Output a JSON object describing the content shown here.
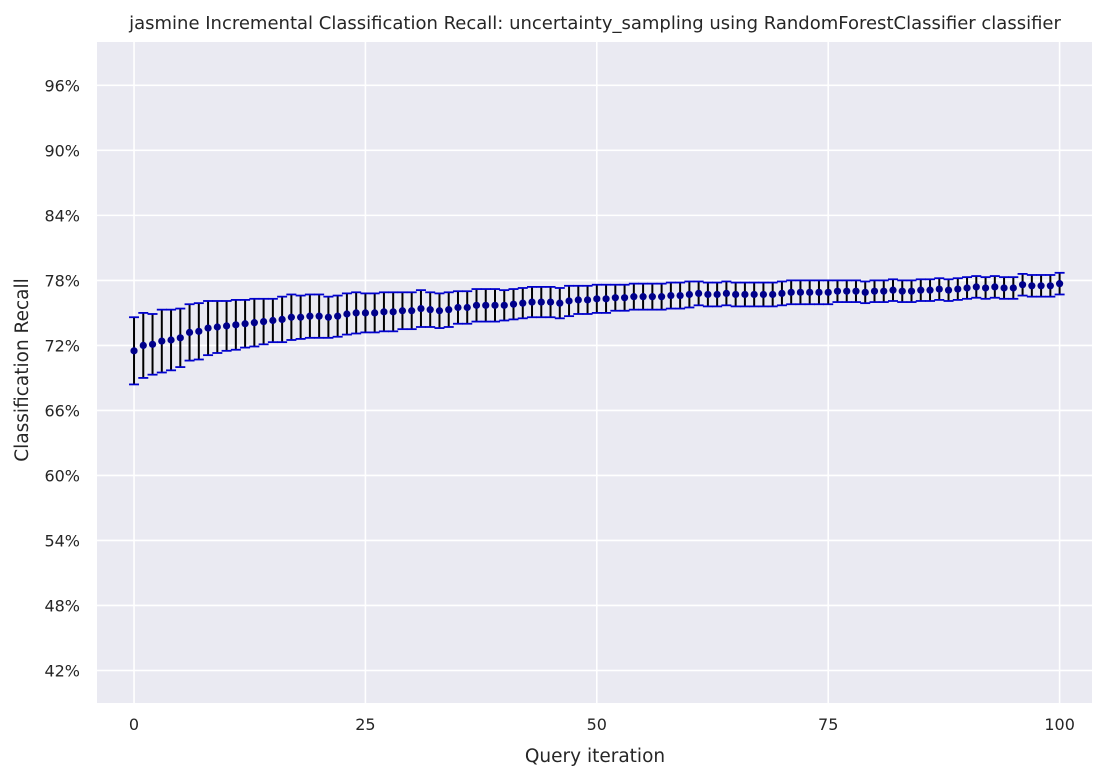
{
  "chart_data": {
    "type": "scatter",
    "title": "jasmine Incremental Classification Recall: uncertainty_sampling using RandomForestClassifier classifier",
    "xlabel": "Query iteration",
    "ylabel": "Classification Recall",
    "xlim": [
      -4,
      103.5
    ],
    "ylim": [
      0.39,
      1.0
    ],
    "x_ticks": [
      0,
      25,
      50,
      75,
      100
    ],
    "x_tick_labels": [
      "0",
      "25",
      "50",
      "75",
      "100"
    ],
    "y_ticks": [
      0.42,
      0.48,
      0.54,
      0.6,
      0.66,
      0.72,
      0.78,
      0.84,
      0.9,
      0.96
    ],
    "y_tick_labels": [
      "42%",
      "48%",
      "54%",
      "60%",
      "66%",
      "72%",
      "78%",
      "84%",
      "90%",
      "96%"
    ],
    "grid": true,
    "colors": {
      "background": "#eaeaf2",
      "grid": "#ffffff",
      "marker": "#00008b",
      "error_line": "#000000",
      "error_cap": "#0000cd"
    },
    "series": [
      {
        "x": [
          0,
          1,
          2,
          3,
          4,
          5,
          6,
          7,
          8,
          9,
          10,
          11,
          12,
          13,
          14,
          15,
          16,
          17,
          18,
          19,
          20,
          21,
          22,
          23,
          24,
          25,
          26,
          27,
          28,
          29,
          30,
          31,
          32,
          33,
          34,
          35,
          36,
          37,
          38,
          39,
          40,
          41,
          42,
          43,
          44,
          45,
          46,
          47,
          48,
          49,
          50,
          51,
          52,
          53,
          54,
          55,
          56,
          57,
          58,
          59,
          60,
          61,
          62,
          63,
          64,
          65,
          66,
          67,
          68,
          69,
          70,
          71,
          72,
          73,
          74,
          75,
          76,
          77,
          78,
          79,
          80,
          81,
          82,
          83,
          84,
          85,
          86,
          87,
          88,
          89,
          90,
          91,
          92,
          93,
          94,
          95,
          96,
          97,
          98,
          99,
          100
        ],
        "y": [
          0.715,
          0.72,
          0.721,
          0.724,
          0.725,
          0.727,
          0.732,
          0.733,
          0.736,
          0.737,
          0.738,
          0.739,
          0.74,
          0.741,
          0.742,
          0.743,
          0.744,
          0.746,
          0.746,
          0.747,
          0.747,
          0.746,
          0.747,
          0.749,
          0.75,
          0.75,
          0.75,
          0.751,
          0.751,
          0.752,
          0.752,
          0.754,
          0.753,
          0.752,
          0.753,
          0.755,
          0.755,
          0.757,
          0.757,
          0.757,
          0.757,
          0.758,
          0.759,
          0.76,
          0.76,
          0.76,
          0.759,
          0.761,
          0.762,
          0.762,
          0.763,
          0.763,
          0.764,
          0.764,
          0.765,
          0.765,
          0.765,
          0.765,
          0.766,
          0.766,
          0.767,
          0.768,
          0.767,
          0.767,
          0.768,
          0.767,
          0.767,
          0.767,
          0.767,
          0.767,
          0.768,
          0.769,
          0.769,
          0.769,
          0.769,
          0.769,
          0.77,
          0.77,
          0.77,
          0.769,
          0.77,
          0.77,
          0.771,
          0.77,
          0.77,
          0.771,
          0.771,
          0.772,
          0.771,
          0.772,
          0.773,
          0.774,
          0.773,
          0.774,
          0.773,
          0.773,
          0.776,
          0.775,
          0.775,
          0.775,
          0.777
        ],
        "error": [
          0.031,
          0.03,
          0.028,
          0.029,
          0.028,
          0.027,
          0.026,
          0.026,
          0.025,
          0.024,
          0.023,
          0.023,
          0.022,
          0.022,
          0.021,
          0.02,
          0.021,
          0.021,
          0.02,
          0.02,
          0.02,
          0.019,
          0.019,
          0.019,
          0.019,
          0.018,
          0.018,
          0.018,
          0.018,
          0.017,
          0.017,
          0.017,
          0.016,
          0.016,
          0.016,
          0.015,
          0.015,
          0.015,
          0.015,
          0.015,
          0.014,
          0.014,
          0.014,
          0.014,
          0.014,
          0.014,
          0.014,
          0.014,
          0.013,
          0.013,
          0.013,
          0.013,
          0.012,
          0.012,
          0.012,
          0.012,
          0.012,
          0.012,
          0.012,
          0.012,
          0.012,
          0.011,
          0.011,
          0.011,
          0.011,
          0.011,
          0.011,
          0.011,
          0.011,
          0.011,
          0.011,
          0.011,
          0.011,
          0.011,
          0.011,
          0.011,
          0.01,
          0.01,
          0.01,
          0.01,
          0.01,
          0.01,
          0.01,
          0.01,
          0.01,
          0.01,
          0.01,
          0.01,
          0.01,
          0.01,
          0.01,
          0.01,
          0.01,
          0.01,
          0.01,
          0.01,
          0.01,
          0.01,
          0.01,
          0.01,
          0.01
        ]
      }
    ]
  }
}
